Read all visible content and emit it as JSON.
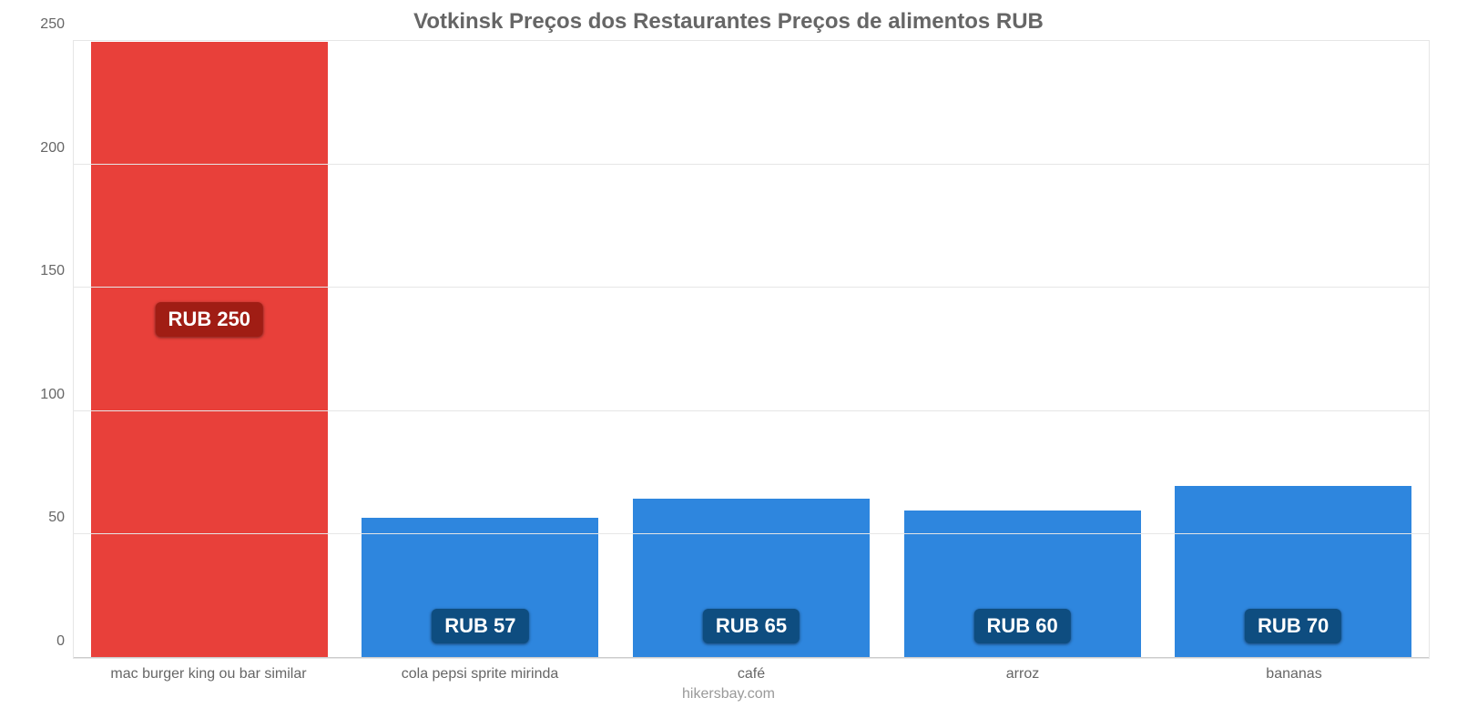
{
  "chart": {
    "type": "bar",
    "title": "Votkinsk Preços dos Restaurantes Preços de alimentos RUB",
    "title_fontsize": 24,
    "title_color": "#666666",
    "footer": "hikersbay.com",
    "footer_fontsize": 16,
    "footer_color": "#999999",
    "background_color": "#ffffff",
    "grid_color": "#e6e6e6",
    "axis_label_color": "#666666",
    "axis_label_fontsize": 16,
    "ylim": [
      0,
      250
    ],
    "yticks": [
      0,
      50,
      100,
      150,
      200,
      250
    ],
    "bar_width_ratio": 0.88,
    "badge_fontsize": 22,
    "badge_text_color": "#ffffff",
    "categories": [
      {
        "label": "mac burger king ou bar similar",
        "value": 250,
        "value_label": "RUB 250",
        "bar_color": "#e8403a",
        "badge_color": "#a01d14",
        "badge_from_top": true
      },
      {
        "label": "cola pepsi sprite mirinda",
        "value": 57,
        "value_label": "RUB 57",
        "bar_color": "#2e86de",
        "badge_color": "#0e4d80",
        "badge_from_top": false
      },
      {
        "label": "café",
        "value": 65,
        "value_label": "RUB 65",
        "bar_color": "#2e86de",
        "badge_color": "#0e4d80",
        "badge_from_top": false
      },
      {
        "label": "arroz",
        "value": 60,
        "value_label": "RUB 60",
        "bar_color": "#2e86de",
        "badge_color": "#0e4d80",
        "badge_from_top": false
      },
      {
        "label": "bananas",
        "value": 70,
        "value_label": "RUB 70",
        "bar_color": "#2e86de",
        "badge_color": "#0e4d80",
        "badge_from_top": false
      }
    ]
  }
}
